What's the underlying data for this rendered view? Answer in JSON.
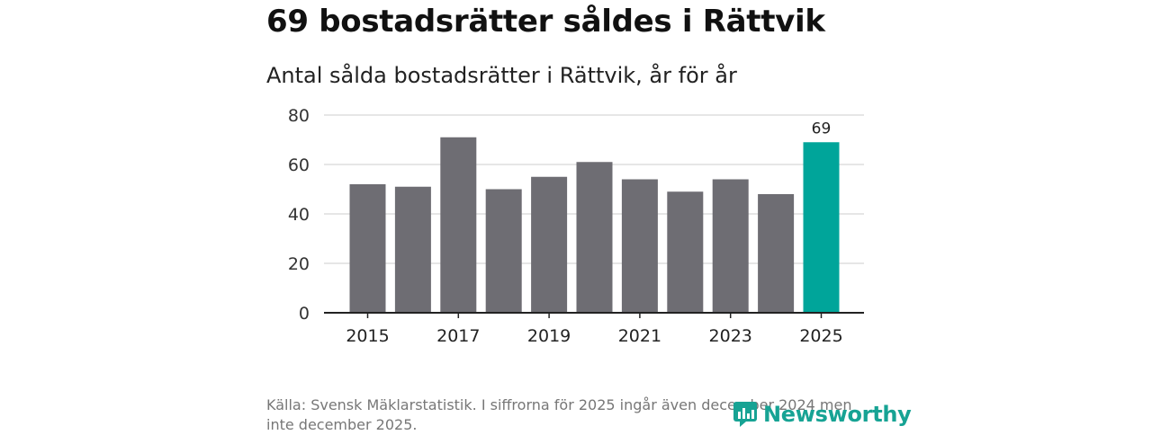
{
  "headline": "69 bostadsrätter såldes i Rättvik",
  "source": "Källa: Svensk Mäklarstatistik. I siffrorna för 2025 ingår även december 2024 men inte december 2025.",
  "logo": {
    "text": "Newsworthy",
    "icon": "newsworthy-logo-icon",
    "color": "#17a394"
  },
  "chart_data": {
    "type": "bar",
    "title": "Antal sålda bostadsrätter i Rättvik, år för år",
    "categories": [
      "2015",
      "2016",
      "2017",
      "2018",
      "2019",
      "2020",
      "2021",
      "2022",
      "2023",
      "2024",
      "2025"
    ],
    "values": [
      52,
      51,
      71,
      50,
      55,
      61,
      54,
      49,
      54,
      48,
      69
    ],
    "x_tick_labels": [
      "2015",
      "2017",
      "2019",
      "2021",
      "2023",
      "2025"
    ],
    "y_ticks": [
      0,
      20,
      40,
      60,
      80
    ],
    "ylim": [
      0,
      80
    ],
    "grid": true,
    "highlight": {
      "category": "2025",
      "label": "69"
    },
    "colors": {
      "bar": "#6e6d73",
      "highlight": "#00a59a",
      "grid": "#dddddd",
      "axis": "#222222"
    }
  }
}
